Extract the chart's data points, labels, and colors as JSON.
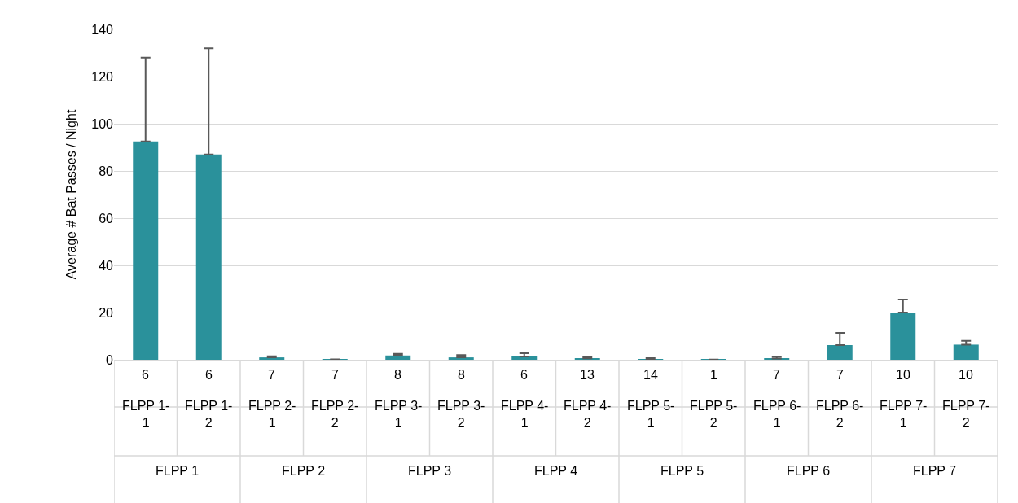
{
  "chart_data": {
    "type": "bar",
    "ylabel": "Average # Bat Passes / Night",
    "categories": [
      "FLPP 1-1",
      "FLPP 1-2",
      "FLPP 2-1",
      "FLPP 2-2",
      "FLPP 3-1",
      "FLPP 3-2",
      "FLPP 4-1",
      "FLPP 4-2",
      "FLPP 5-1",
      "FLPP 5-2",
      "FLPP 6-1",
      "FLPP 6-2",
      "FLPP 7-1",
      "FLPP 7-2"
    ],
    "series": [
      {
        "color": "#2a919b",
        "values": [
          92.5,
          87,
          1,
          0.2,
          1.8,
          1,
          1.4,
          0.6,
          0.3,
          0.1,
          0.5,
          6.2,
          20,
          6.4
        ],
        "errors": [
          [
            92.5,
            128
          ],
          [
            87,
            132
          ],
          [
            1,
            1.5
          ],
          null,
          [
            1.8,
            2.5
          ],
          [
            1,
            2
          ],
          [
            1.4,
            2.8
          ],
          [
            0.6,
            1.1
          ],
          [
            0.3,
            0.7
          ],
          null,
          [
            0.5,
            1.3
          ],
          [
            6.2,
            11.4
          ],
          [
            20,
            25.5
          ],
          [
            6.4,
            8
          ]
        ]
      }
    ],
    "ylim": [
      0,
      140
    ],
    "yticks": [
      0,
      20,
      40,
      60,
      80,
      100,
      120,
      140
    ],
    "grid": "y",
    "annotations": [
      "6",
      "6",
      "7",
      "7",
      "8",
      "8",
      "6",
      "13",
      "14",
      "1",
      "7",
      "7",
      "10",
      "10",
      "FLPP 1",
      "FLPP 2",
      "FLPP 3",
      "FLPP 4",
      "FLPP 5",
      "FLPP 6",
      "FLPP 7"
    ]
  }
}
